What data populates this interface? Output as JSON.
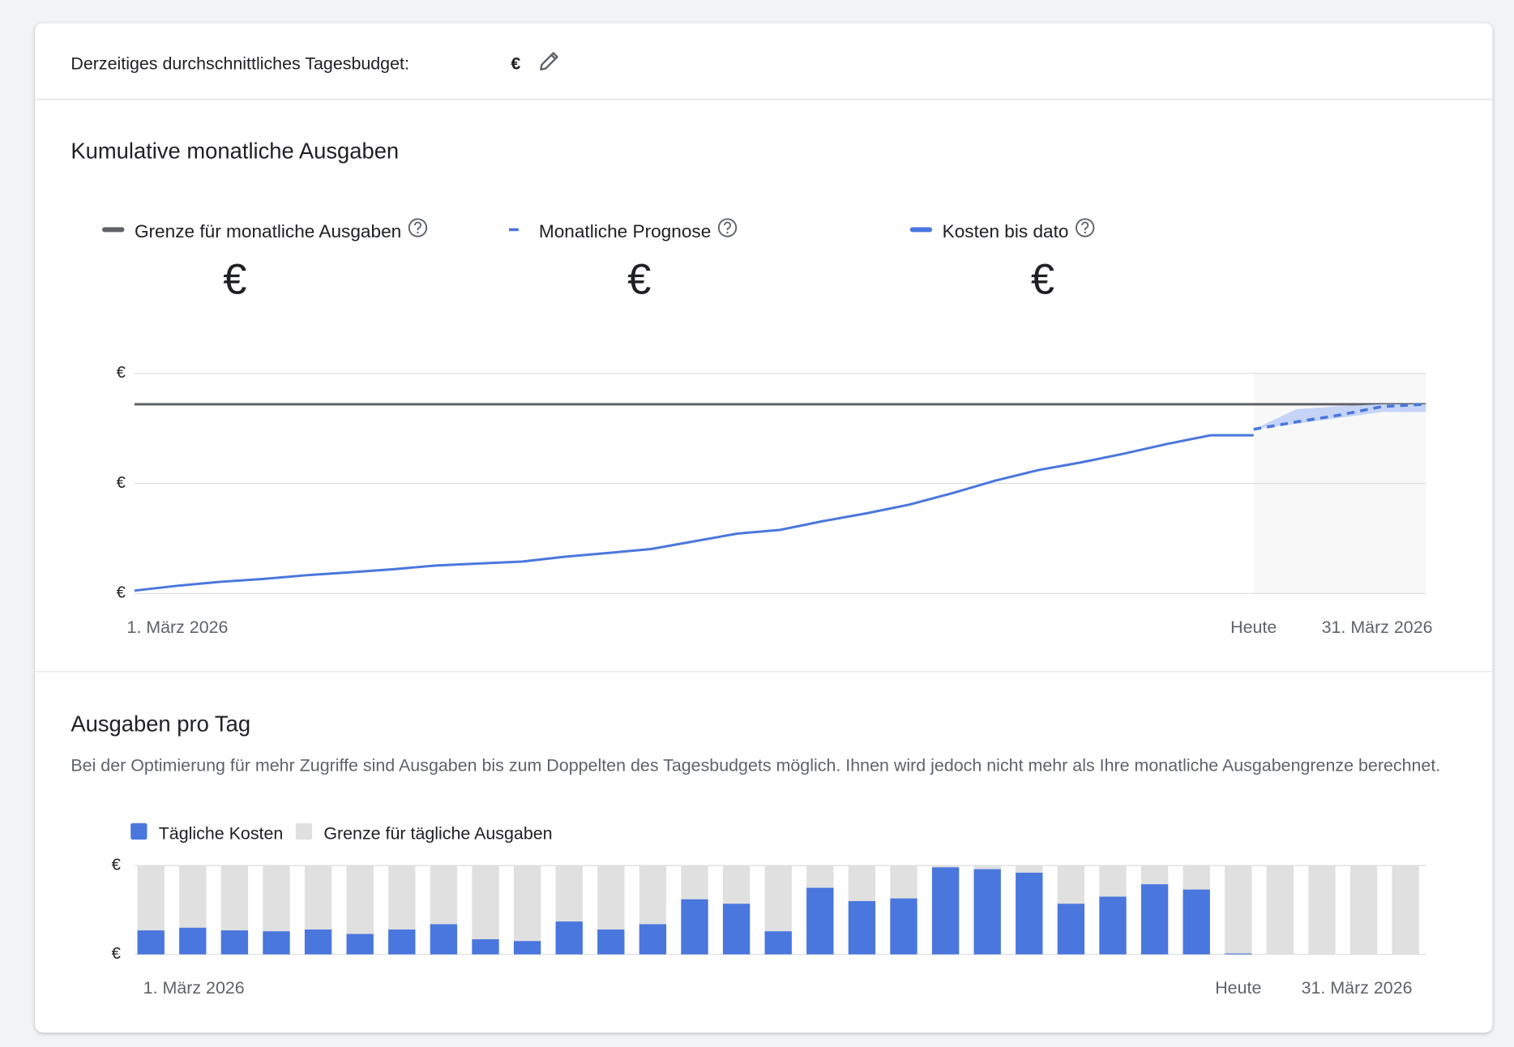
{
  "header": {
    "label": "Derzeitiges durchschnittliches Tagesbudget:",
    "value": "€"
  },
  "chart_data": [
    {
      "type": "line",
      "title": "Kumulative monatliche Ausgaben",
      "xlim": [
        1,
        31
      ],
      "xticks": [
        {
          "value": 1,
          "label": "1. März 2026"
        },
        {
          "value": 27,
          "label": "Heute"
        },
        {
          "value": 31,
          "label": "31. März 2026"
        }
      ],
      "ylim": [
        0,
        100
      ],
      "yticks": [
        {
          "value": 0,
          "label": "€"
        },
        {
          "value": 50,
          "label": "€"
        },
        {
          "value": 100,
          "label": "€"
        }
      ],
      "grid": true,
      "series": [
        {
          "name": "Grenze für monatliche Ausgaben",
          "summary": "€",
          "color": "#5f6368",
          "x": [
            1,
            31
          ],
          "values": [
            86,
            86
          ]
        },
        {
          "name": "Monatliche Prognose",
          "summary": "€",
          "color": "#4a77dd",
          "dashed": true,
          "band_color": "#c5d4f6",
          "x": [
            27,
            28,
            29,
            30,
            31
          ],
          "values": [
            74.6,
            78,
            81.1,
            85,
            86
          ],
          "low": [
            74.6,
            77.2,
            79.8,
            82.5,
            82.5
          ],
          "high": [
            74.6,
            83.8,
            85.1,
            86,
            86
          ]
        },
        {
          "name": "Kosten bis dato",
          "summary": "€",
          "color": "#4a77dd",
          "x": [
            1,
            2,
            3,
            4,
            5,
            6,
            7,
            8,
            9,
            10,
            11,
            12,
            13,
            14,
            15,
            16,
            17,
            18,
            19,
            20,
            21,
            22,
            23,
            24,
            25,
            26,
            27
          ],
          "values": [
            1.3,
            3.5,
            5.3,
            6.6,
            8.3,
            9.6,
            11,
            12.7,
            13.6,
            14.5,
            16.7,
            18.4,
            20.2,
            23.7,
            27.2,
            28.9,
            32.9,
            36.4,
            40.4,
            45.6,
            51.3,
            56.1,
            59.6,
            63.6,
            68,
            71.9,
            71.9
          ]
        }
      ]
    },
    {
      "type": "bar",
      "title": "Ausgaben pro Tag",
      "subtitle": "Bei der Optimierung für mehr Zugriffe sind Ausgaben bis zum Doppelten des Tagesbudgets möglich. Ihnen wird jedoch nicht mehr als Ihre monatliche Ausgabengrenze berechnet.",
      "x": [
        1,
        2,
        3,
        4,
        5,
        6,
        7,
        8,
        9,
        10,
        11,
        12,
        13,
        14,
        15,
        16,
        17,
        18,
        19,
        20,
        21,
        22,
        23,
        24,
        25,
        26,
        27,
        28,
        29,
        30,
        31
      ],
      "xlim": [
        1,
        31
      ],
      "xticks": [
        {
          "value": 1,
          "label": "1. März 2026"
        },
        {
          "value": 27,
          "label": "Heute"
        },
        {
          "value": 31,
          "label": "31. März 2026"
        }
      ],
      "ylim": [
        0,
        100
      ],
      "yticks": [
        {
          "value": 0,
          "label": "€"
        },
        {
          "value": 100,
          "label": "€"
        }
      ],
      "grid": true,
      "series": [
        {
          "name": "Tägliche Kosten",
          "color": "#4a77dd",
          "values": [
            27,
            30,
            27,
            26,
            28,
            23,
            28,
            34,
            17,
            15,
            37,
            28,
            34,
            62,
            57,
            26,
            75,
            60,
            63,
            98,
            96,
            92,
            57,
            65,
            79,
            73,
            1,
            null,
            null,
            null,
            null
          ]
        },
        {
          "name": "Grenze für tägliche Ausgaben",
          "color": "#e0e0e0",
          "values": [
            100,
            100,
            100,
            100,
            100,
            100,
            100,
            100,
            100,
            100,
            100,
            100,
            100,
            100,
            100,
            100,
            100,
            100,
            100,
            100,
            100,
            100,
            100,
            100,
            100,
            100,
            100,
            100,
            100,
            100,
            100
          ]
        }
      ]
    }
  ]
}
